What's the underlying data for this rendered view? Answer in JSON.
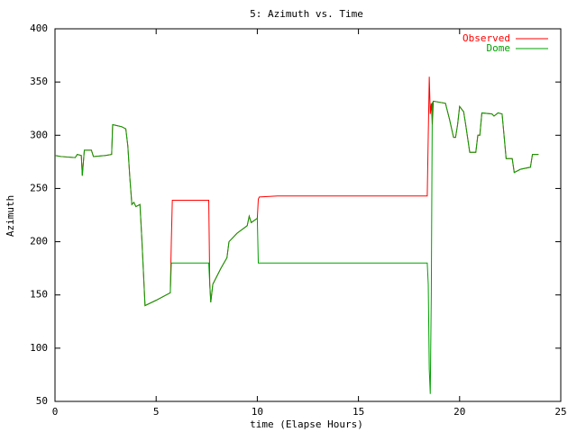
{
  "chart_data": {
    "type": "line",
    "title": "5: Azimuth vs. Time",
    "x_label": "time (Elapse Hours)",
    "y_label": "Azimuth",
    "x": [
      0,
      0.3,
      1.0,
      1.1,
      1.3,
      1.35,
      1.45,
      1.8,
      1.9,
      2.5,
      2.8,
      2.85,
      3.3,
      3.5,
      3.6,
      3.7,
      3.8,
      3.9,
      4.0,
      4.2,
      4.3,
      4.4,
      4.45,
      5.0,
      5.5,
      5.7,
      5.75,
      5.8,
      7.6,
      7.65,
      7.7,
      7.8,
      8.2,
      8.5,
      8.6,
      9.0,
      9.5,
      9.6,
      9.7,
      10.0,
      10.05,
      10.1,
      11.0,
      18.4,
      18.45,
      18.5,
      18.55,
      18.6,
      18.65,
      18.7,
      19.3,
      19.5,
      19.7,
      19.8,
      19.9,
      20.0,
      20.2,
      20.3,
      20.5,
      20.8,
      20.9,
      21.0,
      21.1,
      21.6,
      21.7,
      21.9,
      22.1,
      22.3,
      22.6,
      22.7,
      23.0,
      23.5,
      23.6,
      23.9
    ],
    "series": [
      {
        "name": "Observed",
        "color": "#ff0000",
        "values": [
          281,
          280,
          279,
          282,
          281,
          262,
          286,
          286,
          280,
          281,
          282,
          310,
          308,
          306,
          290,
          260,
          235,
          237,
          233,
          235,
          200,
          160,
          140,
          145,
          150,
          152,
          200,
          239,
          239,
          160,
          143,
          160,
          175,
          185,
          200,
          208,
          215,
          224,
          218,
          222,
          240,
          242,
          243,
          243,
          300,
          355,
          320,
          330,
          310,
          332,
          330,
          315,
          298,
          298,
          310,
          327,
          322,
          310,
          284,
          284,
          300,
          300,
          321,
          320,
          318,
          321,
          320,
          278,
          278,
          265,
          268,
          270,
          282,
          282
        ]
      },
      {
        "name": "Dome",
        "color": "#00a000",
        "values": [
          281,
          280,
          279,
          282,
          281,
          262,
          286,
          286,
          280,
          281,
          282,
          310,
          308,
          306,
          290,
          260,
          235,
          237,
          233,
          235,
          200,
          160,
          140,
          145,
          150,
          152,
          180,
          180,
          180,
          160,
          143,
          160,
          175,
          185,
          200,
          208,
          215,
          224,
          218,
          222,
          180,
          180,
          180,
          180,
          160,
          80,
          57,
          150,
          330,
          332,
          330,
          315,
          298,
          298,
          310,
          327,
          322,
          310,
          284,
          284,
          300,
          300,
          321,
          320,
          318,
          321,
          320,
          278,
          278,
          265,
          268,
          270,
          282,
          282
        ]
      }
    ],
    "xlim": [
      0,
      25
    ],
    "xticks": [
      0,
      5,
      10,
      15,
      20,
      25
    ],
    "ylim": [
      50,
      400
    ],
    "yticks": [
      50,
      100,
      150,
      200,
      250,
      300,
      350,
      400
    ],
    "legend": "top-right",
    "grid": false
  }
}
